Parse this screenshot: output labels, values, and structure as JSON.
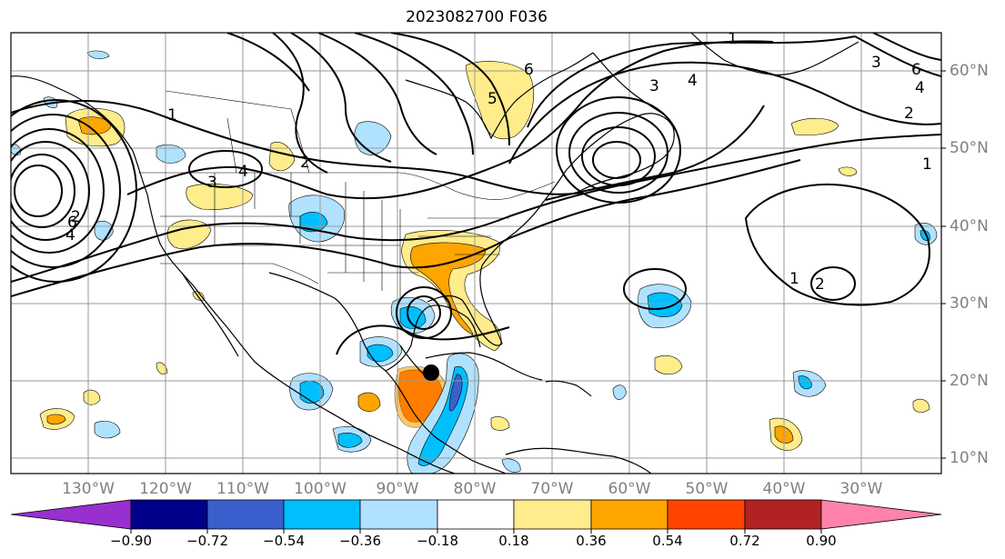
{
  "title": "2023082700 F036",
  "lon_ticks": [
    "130°W",
    "120°W",
    "110°W",
    "100°W",
    "90°W",
    "80°W",
    "70°W",
    "60°W",
    "50°W",
    "40°W",
    "30°W"
  ],
  "lat_ticks": [
    "60°N",
    "50°N",
    "40°N",
    "30°N",
    "20°N",
    "10°N"
  ],
  "contour_labels": [
    "1",
    "2",
    "3",
    "4",
    "5",
    "6"
  ],
  "colorbar": {
    "ticks": [
      "−0.90",
      "−0.72",
      "−0.54",
      "−0.36",
      "−0.18",
      "0.18",
      "0.36",
      "0.54",
      "0.72",
      "0.90"
    ],
    "colors": {
      "under": "#9a2fd0",
      "c1": "#00008b",
      "c2": "#3a5fcd",
      "c3": "#00bfff",
      "c4": "#b0e2ff",
      "c5": "#ffffff",
      "c6": "#ffec8b",
      "c7": "#ffa500",
      "c8": "#ff4500",
      "c9": "#b22222",
      "over": "#ff82ab"
    }
  },
  "storm_marker_color": "#000000"
}
